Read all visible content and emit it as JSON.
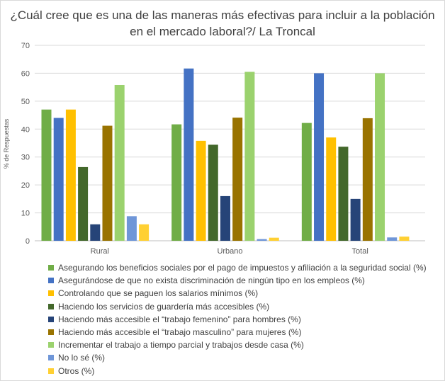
{
  "chart_data": {
    "type": "bar",
    "title_lines": [
      "¿Cuál cree que es una de las maneras más efectivas para incluir a la población",
      "en el mercado laboral?/ La Troncal"
    ],
    "ylabel": "% de Respuestas",
    "xlabel": "",
    "ylim": [
      0,
      70
    ],
    "yticks": [
      "0",
      "10",
      "20",
      "30",
      "40",
      "50",
      "60",
      "70"
    ],
    "grid": true,
    "legend_position": "bottom",
    "categories": [
      "Rural",
      "Urbano",
      "Total"
    ],
    "series": [
      {
        "name": "Asegurando los beneficios sociales por el pago de impuestos y afiliación a la seguridad social (%)",
        "color": "#70ad47",
        "values": [
          47,
          41.7,
          42.2
        ]
      },
      {
        "name": "Asegurándose de que no exista discriminación de ningún tipo en los empleos (%)",
        "color": "#4472c4",
        "values": [
          44,
          61.7,
          60
        ]
      },
      {
        "name": "Controlando que se paguen los salarios mínimos (%)",
        "color": "#ffc000",
        "values": [
          47,
          35.8,
          37
        ]
      },
      {
        "name": "Haciendo los servicios de guardería más accesibles (%)",
        "color": "#43682b",
        "values": [
          26.4,
          34.4,
          33.7
        ]
      },
      {
        "name": "Haciendo más accesible el “trabajo femenino” para hombres (%)",
        "color": "#264478",
        "values": [
          5.9,
          16,
          15
        ]
      },
      {
        "name": "Haciendo más accesible el “trabajo masculino” para mujeres (%)",
        "color": "#997300",
        "values": [
          41.2,
          44.1,
          43.9
        ]
      },
      {
        "name": "Incrementar el trabajo a tiempo parcial y trabajos desde casa (%)",
        "color": "#9bd26e",
        "values": [
          55.8,
          60.5,
          60
        ]
      },
      {
        "name": "No lo sé (%)",
        "color": "#6f96d8",
        "values": [
          8.8,
          0.6,
          1.2
        ]
      },
      {
        "name": "Otros (%)",
        "color": "#ffd033",
        "values": [
          5.9,
          1.1,
          1.5
        ]
      }
    ]
  }
}
